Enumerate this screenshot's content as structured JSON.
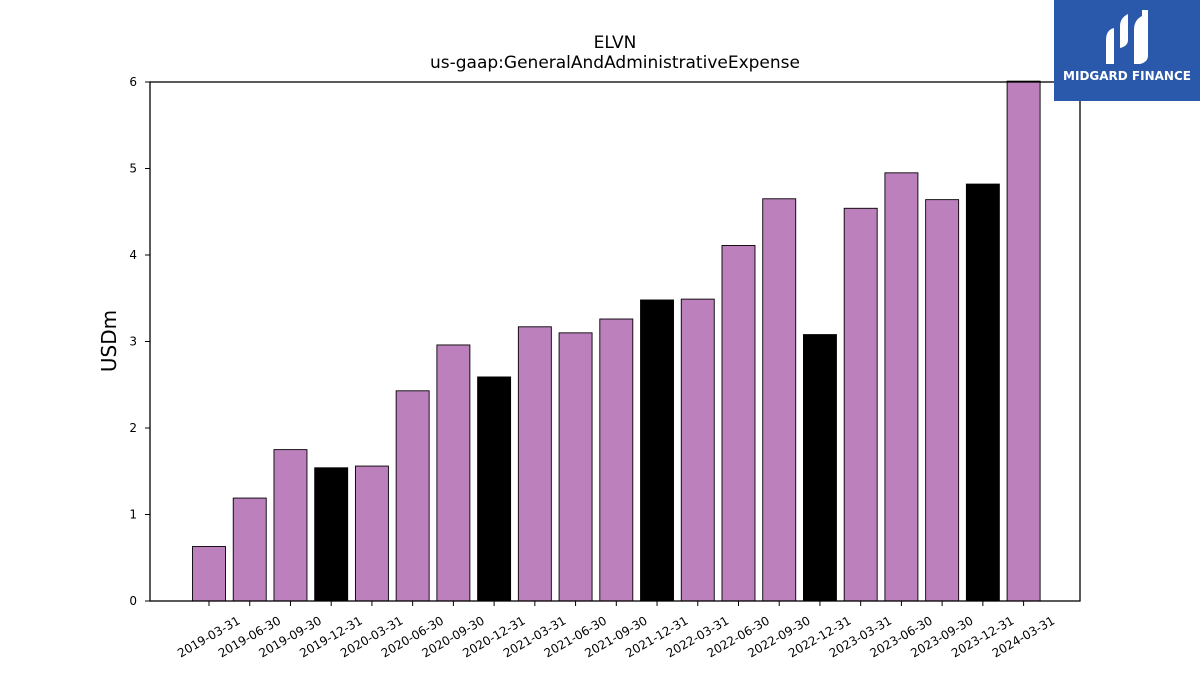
{
  "brand": {
    "logo_text": "MIDGARD FINANCE",
    "background": "#2a58ab"
  },
  "chart_data": {
    "type": "bar",
    "title": "ELVN",
    "subtitle": "us-gaap:GeneralAndAdministrativeExpense",
    "xlabel": "",
    "ylabel": "USDm",
    "ylim": [
      0,
      6
    ],
    "yticks": [
      0,
      1,
      2,
      3,
      4,
      5,
      6
    ],
    "grid": false,
    "categories": [
      "2019-03-31",
      "2019-06-30",
      "2019-09-30",
      "2019-12-31",
      "2020-03-31",
      "2020-06-30",
      "2020-09-30",
      "2020-12-31",
      "2021-03-31",
      "2021-06-30",
      "2021-09-30",
      "2021-12-31",
      "2022-03-31",
      "2022-06-30",
      "2022-09-30",
      "2022-12-31",
      "2023-03-31",
      "2023-06-30",
      "2023-09-30",
      "2023-12-31",
      "2024-03-31"
    ],
    "values": [
      0.63,
      1.19,
      1.75,
      1.54,
      1.56,
      2.43,
      2.96,
      2.59,
      3.17,
      3.1,
      3.26,
      3.48,
      3.49,
      4.11,
      4.65,
      3.08,
      4.54,
      4.95,
      4.64,
      4.82,
      6.01
    ],
    "bar_colors": [
      "#bc80bd",
      "#bc80bd",
      "#bc80bd",
      "#000000",
      "#bc80bd",
      "#bc80bd",
      "#bc80bd",
      "#000000",
      "#bc80bd",
      "#bc80bd",
      "#bc80bd",
      "#000000",
      "#bc80bd",
      "#bc80bd",
      "#bc80bd",
      "#000000",
      "#bc80bd",
      "#bc80bd",
      "#bc80bd",
      "#000000",
      "#bc80bd"
    ]
  }
}
